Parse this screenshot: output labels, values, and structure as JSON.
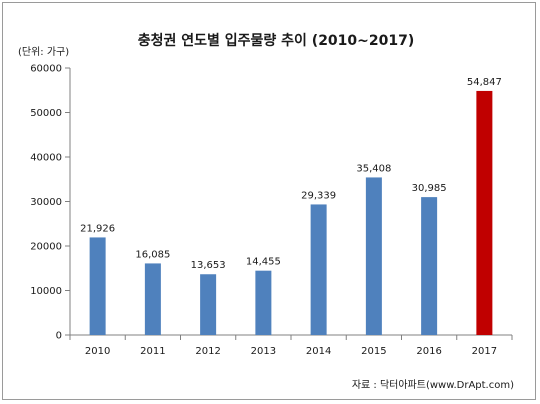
{
  "chart_data": {
    "type": "bar",
    "title": "충청권 연도별 입주물량 추이 (2010~2017)",
    "unit_label": "(단위: 가구)",
    "source": "자료 : 닥터아파트(www.DrApt.com)",
    "categories": [
      "2010",
      "2011",
      "2012",
      "2013",
      "2014",
      "2015",
      "2016",
      "2017"
    ],
    "values": [
      21926,
      16085,
      13653,
      14455,
      29339,
      35408,
      30985,
      54847
    ],
    "value_labels": [
      "21,926",
      "16,085",
      "13,653",
      "14,455",
      "29,339",
      "35,408",
      "30,985",
      "54,847"
    ],
    "yticks": [
      "0",
      "10000",
      "20000",
      "30000",
      "40000",
      "50000",
      "60000"
    ],
    "ylim": [
      0,
      60000
    ],
    "grid": false,
    "colors": {
      "bar": "#4f81bd",
      "highlight": "#c00000"
    },
    "highlight_index": 7
  }
}
